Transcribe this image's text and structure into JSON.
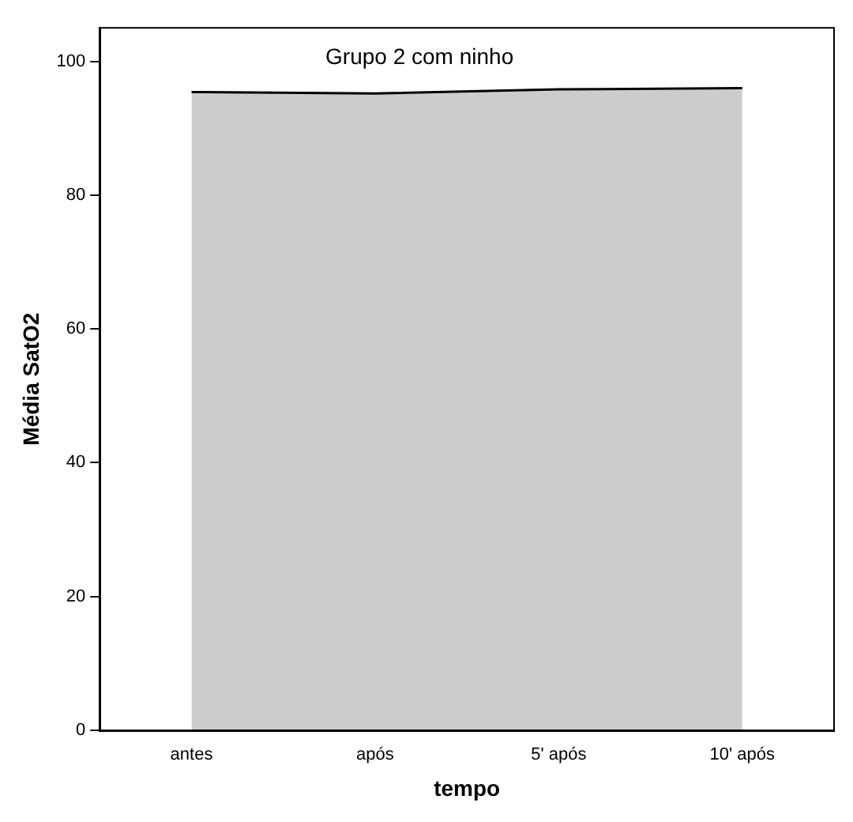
{
  "chart_data": {
    "type": "area",
    "title": "Grupo 2 com ninho",
    "xlabel": "tempo",
    "ylabel": "Média SatO2",
    "categories": [
      "antes",
      "após",
      "5' após",
      "10' após"
    ],
    "series": [
      {
        "color": "#cccccc",
        "values": [
          95.4,
          95.2,
          95.8,
          96.0
        ]
      }
    ],
    "ylim": [
      0,
      105
    ],
    "yticks": [
      0,
      20,
      40,
      60,
      80,
      100
    ],
    "grid": false,
    "legend": false,
    "marker": "none"
  }
}
